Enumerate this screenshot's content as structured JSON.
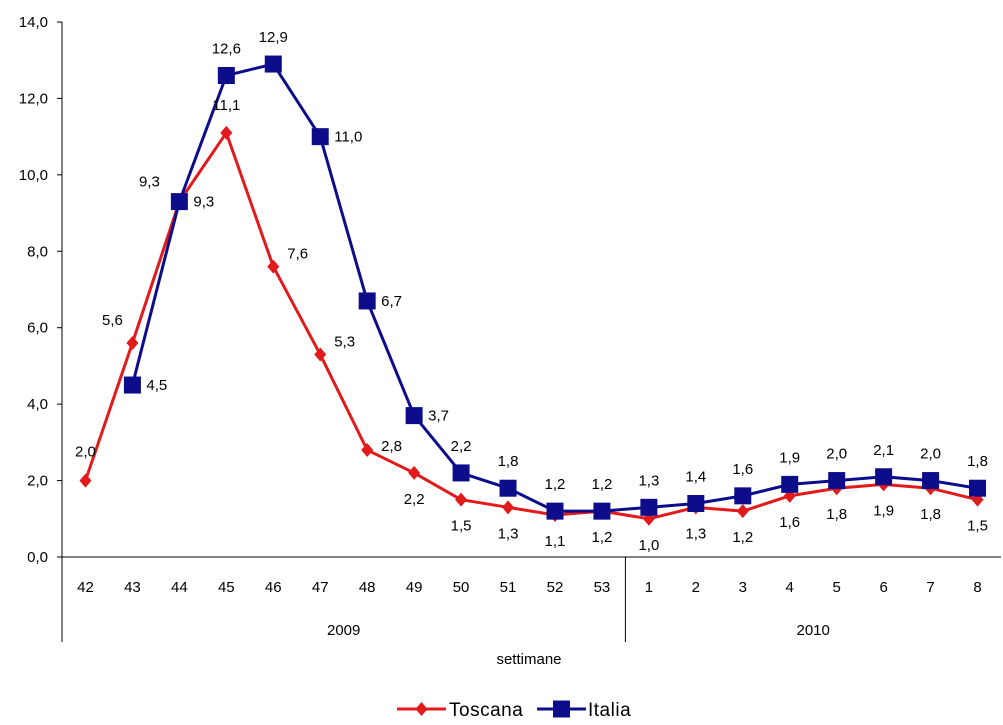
{
  "chart_data": {
    "type": "line",
    "xlabel": "settimane",
    "ylabel": "",
    "ylim": [
      0,
      14
    ],
    "y_ticks": [
      "0,0",
      "2,0",
      "4,0",
      "6,0",
      "8,0",
      "10,0",
      "12,0",
      "14,0"
    ],
    "categories": [
      "42",
      "43",
      "44",
      "45",
      "46",
      "47",
      "48",
      "49",
      "50",
      "51",
      "52",
      "53",
      "1",
      "2",
      "3",
      "4",
      "5",
      "6",
      "7",
      "8"
    ],
    "year_groups": [
      {
        "label": "2009",
        "count": 12
      },
      {
        "label": "2010",
        "count": 8
      }
    ],
    "grid": false,
    "legend_position": "bottom",
    "series": [
      {
        "name": "Toscana",
        "color": "#e31a1c",
        "marker": "diamond",
        "values": [
          2.0,
          5.6,
          9.3,
          11.1,
          7.6,
          5.3,
          2.8,
          2.2,
          1.5,
          1.3,
          1.1,
          1.2,
          1.0,
          1.3,
          1.2,
          1.6,
          1.8,
          1.9,
          1.8,
          1.5
        ],
        "labels": [
          "2,0",
          "5,6",
          "9,3",
          "11,1",
          "7,6",
          "5,3",
          "2,8",
          "2,2",
          "1,5",
          "1,3",
          "1,1",
          "1,2",
          "1,0",
          "1,3",
          "1,2",
          "1,6",
          "1,8",
          "1,9",
          "1,8",
          "1,5"
        ]
      },
      {
        "name": "Italia",
        "color": "#0d0d8c",
        "marker": "square",
        "values": [
          null,
          4.5,
          9.3,
          12.6,
          12.9,
          11.0,
          6.7,
          3.7,
          2.2,
          1.8,
          1.2,
          1.2,
          1.3,
          1.4,
          1.6,
          1.9,
          2.0,
          2.1,
          2.0,
          1.8
        ],
        "labels": [
          null,
          "4,5",
          "9,3",
          "12,6",
          "12,9",
          "11,0",
          "6,7",
          "3,7",
          "2,2",
          "1,8",
          "1,2",
          "1,2",
          "1,3",
          "1,4",
          "1,6",
          "1,9",
          "2,0",
          "2,1",
          "2,0",
          "1,8"
        ]
      }
    ]
  }
}
